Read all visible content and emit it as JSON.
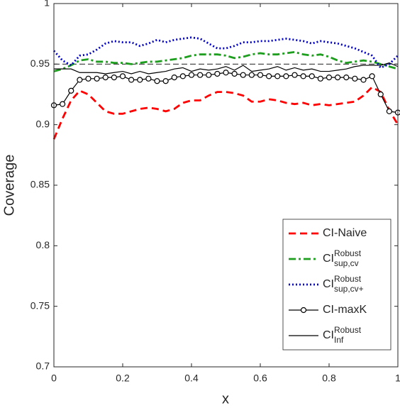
{
  "chart_data": {
    "type": "line",
    "xlabel": "x",
    "ylabel": "Coverage",
    "xlim": [
      0,
      1
    ],
    "ylim": [
      0.7,
      1
    ],
    "xticks": [
      0,
      0.2,
      0.4,
      0.6,
      0.8,
      1
    ],
    "yticks": [
      0.7,
      0.75,
      0.8,
      0.85,
      0.9,
      0.95,
      1
    ],
    "hline": 0.95,
    "legend": "lower right",
    "x": [
      0,
      0.025,
      0.05,
      0.075,
      0.1,
      0.125,
      0.15,
      0.175,
      0.2,
      0.225,
      0.25,
      0.275,
      0.3,
      0.325,
      0.35,
      0.375,
      0.4,
      0.425,
      0.45,
      0.475,
      0.5,
      0.525,
      0.55,
      0.575,
      0.6,
      0.625,
      0.65,
      0.675,
      0.7,
      0.725,
      0.75,
      0.775,
      0.8,
      0.825,
      0.85,
      0.875,
      0.9,
      0.925,
      0.95,
      0.975,
      1
    ],
    "series": [
      {
        "name": "CI-Naive",
        "color": "#ff0000",
        "style": "dash",
        "values": [
          0.888,
          0.905,
          0.92,
          0.928,
          0.925,
          0.918,
          0.911,
          0.909,
          0.909,
          0.911,
          0.913,
          0.914,
          0.913,
          0.911,
          0.913,
          0.918,
          0.92,
          0.92,
          0.924,
          0.927,
          0.927,
          0.926,
          0.924,
          0.919,
          0.919,
          0.921,
          0.92,
          0.918,
          0.917,
          0.918,
          0.916,
          0.917,
          0.916,
          0.917,
          0.918,
          0.919,
          0.924,
          0.931,
          0.927,
          0.912,
          0.9
        ]
      },
      {
        "name": "CI",
        "superscript": "Robust",
        "subscript": "sup,cv",
        "color": "#1e9e1e",
        "style": "dashdot",
        "values": [
          0.944,
          0.946,
          0.949,
          0.953,
          0.954,
          0.952,
          0.952,
          0.951,
          0.951,
          0.95,
          0.951,
          0.952,
          0.952,
          0.953,
          0.954,
          0.955,
          0.957,
          0.958,
          0.958,
          0.958,
          0.957,
          0.955,
          0.956,
          0.958,
          0.959,
          0.958,
          0.958,
          0.959,
          0.96,
          0.958,
          0.957,
          0.958,
          0.956,
          0.953,
          0.951,
          0.952,
          0.953,
          0.952,
          0.95,
          0.948,
          0.946
        ]
      },
      {
        "name": "CI",
        "superscript": "Robust",
        "subscript": "sup,cv+",
        "color": "#0000cc",
        "style": "dot",
        "values": [
          0.961,
          0.953,
          0.949,
          0.957,
          0.958,
          0.962,
          0.967,
          0.969,
          0.968,
          0.968,
          0.965,
          0.967,
          0.97,
          0.968,
          0.97,
          0.971,
          0.972,
          0.971,
          0.967,
          0.963,
          0.963,
          0.965,
          0.968,
          0.968,
          0.969,
          0.969,
          0.97,
          0.971,
          0.97,
          0.969,
          0.967,
          0.969,
          0.968,
          0.967,
          0.965,
          0.963,
          0.96,
          0.957,
          0.947,
          0.95,
          0.957
        ]
      },
      {
        "name": "CI-maxK",
        "color": "#000000",
        "style": "solid",
        "marker": "o",
        "values": [
          0.916,
          0.917,
          0.928,
          0.937,
          0.938,
          0.938,
          0.939,
          0.939,
          0.94,
          0.937,
          0.937,
          0.938,
          0.936,
          0.936,
          0.939,
          0.94,
          0.941,
          0.941,
          0.941,
          0.942,
          0.943,
          0.942,
          0.941,
          0.941,
          0.941,
          0.94,
          0.94,
          0.94,
          0.941,
          0.94,
          0.94,
          0.938,
          0.939,
          0.939,
          0.939,
          0.938,
          0.937,
          0.94,
          0.925,
          0.911,
          0.91
        ]
      },
      {
        "name": "CI",
        "superscript": "Robust",
        "subscript": "Inf",
        "color": "#000000",
        "style": "solid",
        "values": [
          0.946,
          0.946,
          0.946,
          0.943,
          0.943,
          0.943,
          0.942,
          0.943,
          0.944,
          0.942,
          0.944,
          0.942,
          0.943,
          0.944,
          0.946,
          0.947,
          0.944,
          0.946,
          0.945,
          0.946,
          0.948,
          0.945,
          0.949,
          0.944,
          0.945,
          0.946,
          0.948,
          0.945,
          0.947,
          0.945,
          0.946,
          0.944,
          0.944,
          0.945,
          0.946,
          0.948,
          0.949,
          0.949,
          0.949,
          0.951,
          0.948
        ]
      }
    ]
  }
}
